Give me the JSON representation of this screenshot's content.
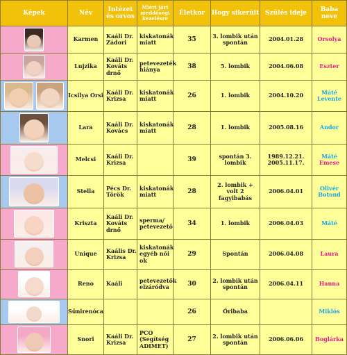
{
  "headers": [
    "Képek",
    "Név",
    "Intézet és orvos",
    "Miért járt meddőségi kezelésre",
    "Életkor",
    "Hogy sikerült",
    "Szülés ideje",
    "Baba neve"
  ],
  "rows": [
    {
      "name": "Karmen",
      "clinic": "Kaáli Dr. Zádori",
      "reason": "kiskatonák miatt",
      "age": "35",
      "how": "3. lombik után spontán",
      "birth": "2004.01.28",
      "baby": "Orsolya",
      "baby_color": "#e8198b"
    },
    {
      "name": "Lujzika",
      "clinic": "Kaáli Dr. Kováts drnő",
      "reason": "petevezeték hiánya",
      "age": "38",
      "how": "5. lombik",
      "birth": "2004.06.08",
      "baby": "Eszter",
      "baby_color": "#e8198b"
    },
    {
      "name": "Icsilya Orsi",
      "clinic": "Kaáli Dr. Krizsa",
      "reason": "kiskatonák miatt",
      "age": "26",
      "how": "1. lombik",
      "birth": "2004.10.20",
      "baby": "Máté Levente",
      "baby_color": "#1aa6e5"
    },
    {
      "name": "Lara",
      "clinic": "Kaáli Dr. Kovács",
      "reason": "kiskatonák miatt",
      "age": "28",
      "how": "1. lombik",
      "birth": "2005.08.16",
      "baby": "Andor",
      "baby_color": "#1aa6e5"
    },
    {
      "name": "Melcsi",
      "clinic": "Kaáli Dr. Krizsa",
      "reason": "",
      "age": "39",
      "how": "spontán 3. lombik",
      "birth": "1989.12.21. 2005.11.17.",
      "baby": "Máté Emese",
      "baby_color": "mix"
    },
    {
      "name": "Stella",
      "clinic": "Pécs Dr. Török",
      "reason": "kiskatonák miatt",
      "age": "28",
      "how": "2. lombik + volt 2 fagyibabás",
      "birth": "2006.04.01",
      "baby": "Olivér Botond",
      "baby_color": "#1aa6e5"
    },
    {
      "name": "Kriszta",
      "clinic": "Kaáli Dr. Kováts drnő",
      "reason": "sperma/ petevezető",
      "age": "34",
      "how": "1. lombik",
      "birth": "2006.04.03",
      "baby": "Máté",
      "baby_color": "#1aa6e5"
    },
    {
      "name": "Unique",
      "clinic": "Kaális Dr. Krizsa",
      "reason": "kiskatonák egyéb női ok",
      "age": "29",
      "how": "Spontán",
      "birth": "2006.04.08",
      "baby": "Laura",
      "baby_color": "#e8198b"
    },
    {
      "name": "Reno",
      "clinic": "Kaáli",
      "reason": "petevezetők elzáródva",
      "age": "30",
      "how": "2. lombik után spontán",
      "birth": "2006.04.11",
      "baby": "Hanna",
      "baby_color": "#e8198b"
    },
    {
      "name": "Sünirenóca",
      "clinic": "",
      "reason": "",
      "age": "26",
      "how": "Őribaba",
      "birth": "",
      "baby": "Miklós",
      "baby_color": "#1aa6e5"
    },
    {
      "name": "Snori",
      "clinic": "Kaáli Dr. Krizsa",
      "reason": "PCO (Segítség ADIMET)",
      "age": "27",
      "how": "2. lombik után spontán",
      "birth": "2006.06.06",
      "baby": "Boglárka",
      "baby_color": "#e8198b"
    }
  ]
}
